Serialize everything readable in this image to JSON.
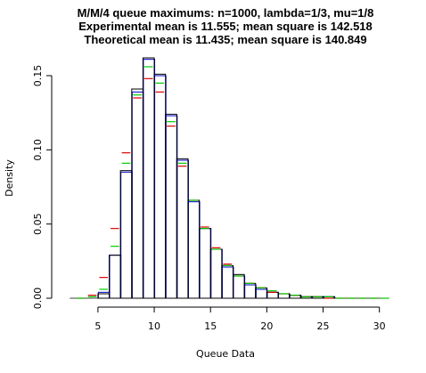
{
  "chart_data": {
    "type": "bar",
    "title_lines": [
      "M/M/4 queue maximums: n=1000, lambda=1/3, mu=1/8",
      "Experimental mean is 11.555; mean square is 142.518",
      "Theoretical mean is 11.435; mean square is 140.849"
    ],
    "xlabel": "Queue Data",
    "ylabel": "Density",
    "xlim": [
      2,
      30.5
    ],
    "ylim": [
      0,
      0.165
    ],
    "xticks": [
      5,
      10,
      15,
      20,
      25,
      30
    ],
    "yticks": [
      0.0,
      0.05,
      0.1,
      0.15
    ],
    "ytick_labels": [
      "0.00",
      "0.05",
      "0.10",
      "0.15"
    ],
    "bin_edges": [
      5,
      6,
      7,
      8,
      9,
      10,
      11,
      12,
      13,
      14,
      15,
      16,
      17,
      18,
      19,
      20,
      21,
      22,
      23,
      24,
      25,
      26,
      27,
      28,
      29,
      30
    ],
    "series": [
      {
        "style": "histogram-black",
        "color": "#000000",
        "values": [
          0.003,
          0.029,
          0.086,
          0.141,
          0.162,
          0.151,
          0.124,
          0.094,
          0.066,
          0.047,
          0.033,
          0.022,
          0.016,
          0.01,
          0.007,
          0.004,
          0.003,
          0.002,
          0.001,
          0.001,
          0.001,
          0.0,
          0.0,
          0.0,
          0.0
        ]
      },
      {
        "style": "histogram-blue",
        "color": "#0000cc",
        "values": [
          0.004,
          0.029,
          0.085,
          0.139,
          0.161,
          0.15,
          0.123,
          0.093,
          0.065,
          0.047,
          0.033,
          0.021,
          0.015,
          0.009,
          0.006,
          0.004,
          0.003,
          0.002,
          0.001,
          0.001,
          0.001,
          0.0,
          0.0,
          0.0,
          0.0
        ]
      },
      {
        "style": "ticks-red",
        "color": "#dd0000",
        "x_centers": [
          3.5,
          4.5,
          5.5,
          6.5,
          7.5,
          8.5,
          9.5,
          10.5,
          11.5,
          12.5,
          13.5,
          14.5,
          15.5,
          16.5,
          17.5,
          18.5,
          19.5,
          20.5,
          21.5,
          22.5,
          23.5,
          24.5,
          25.5,
          26.5,
          27.5,
          28.5,
          29.5
        ],
        "values": [
          0.0,
          0.002,
          0.014,
          0.047,
          0.098,
          0.135,
          0.148,
          0.139,
          0.116,
          0.089,
          0.066,
          0.048,
          0.034,
          0.023,
          0.015,
          0.01,
          0.007,
          0.004,
          0.003,
          0.002,
          0.001,
          0.001,
          0.0,
          0.0,
          0.0,
          0.0,
          0.0
        ]
      },
      {
        "style": "ticks-green",
        "color": "#00cc00",
        "x_centers": [
          3.5,
          4.5,
          5.5,
          6.5,
          7.5,
          8.5,
          9.5,
          10.5,
          11.5,
          12.5,
          13.5,
          14.5,
          15.5,
          16.5,
          17.5,
          18.5,
          19.5,
          20.5,
          21.5,
          22.5,
          23.5,
          24.5,
          25.5,
          26.5,
          27.5,
          28.5,
          29.5,
          30.5
        ],
        "values": [
          0.0,
          0.001,
          0.006,
          0.035,
          0.091,
          0.137,
          0.156,
          0.145,
          0.119,
          0.091,
          0.066,
          0.047,
          0.033,
          0.022,
          0.015,
          0.01,
          0.007,
          0.005,
          0.003,
          0.002,
          0.001,
          0.001,
          0.001,
          0.0,
          0.0,
          0.0,
          0.0,
          0.0
        ]
      }
    ]
  }
}
